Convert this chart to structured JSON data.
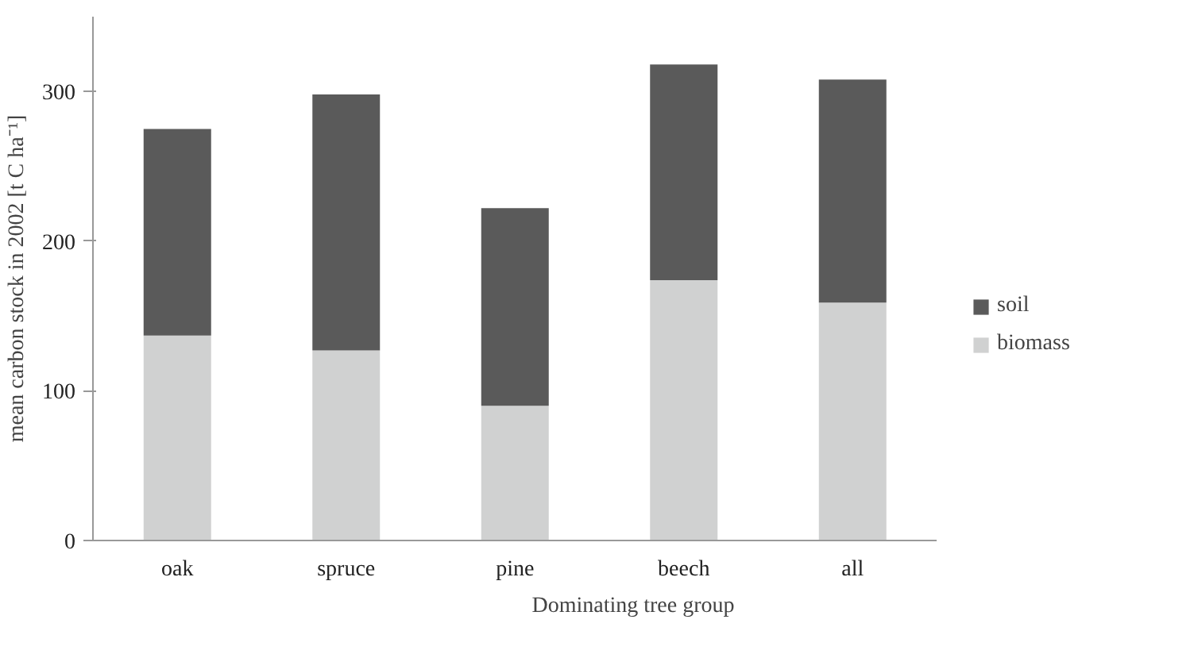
{
  "chart_data": {
    "type": "bar",
    "stacked": true,
    "xlabel": "Dominating tree group",
    "ylabel": "mean carbon stock in 2002 [t C ha⁻¹]",
    "categories": [
      "oak",
      "spruce",
      "pine",
      "beech",
      "all"
    ],
    "series": [
      {
        "name": "biomass",
        "color": "#d0d1d1",
        "values": [
          137,
          127,
          90,
          174,
          159
        ]
      },
      {
        "name": "soil",
        "color": "#5a5a5a",
        "values": [
          138,
          171,
          132,
          144,
          149
        ]
      }
    ],
    "ylim": [
      0,
      350
    ],
    "yticks": [
      0,
      100,
      200,
      300
    ],
    "grid": false,
    "legend": "right"
  }
}
